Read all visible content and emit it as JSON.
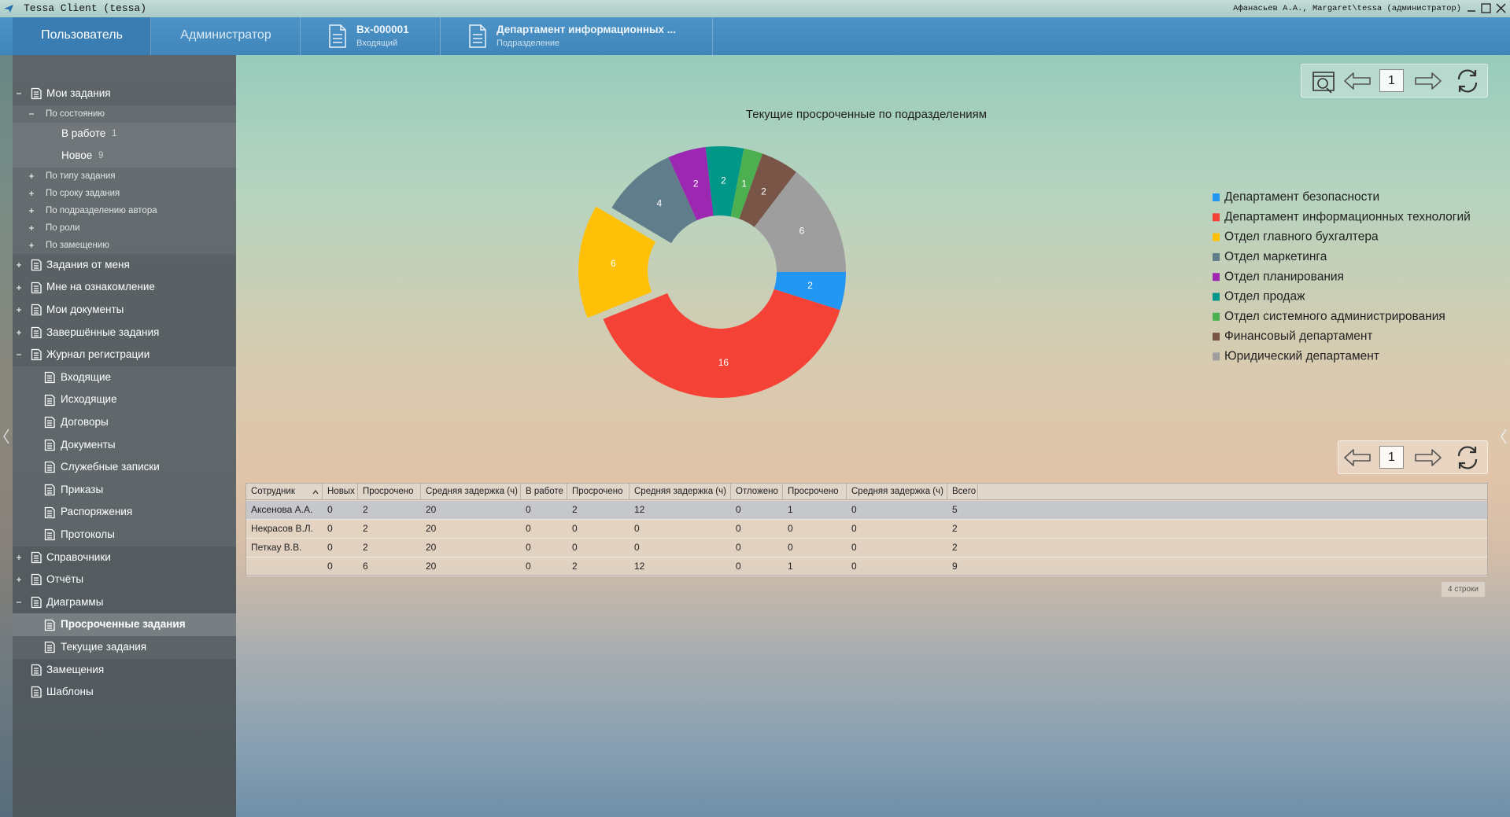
{
  "window": {
    "title": "Tessa Client (tessa)",
    "user": "Афанасьев А.А., Margaret\\tessa (администратор)"
  },
  "tabs": {
    "main": [
      "Пользователь",
      "Администратор"
    ],
    "documents": [
      {
        "title": "Вх-000001",
        "subtitle": "Входящий"
      },
      {
        "title": "Департамент информационных ...",
        "subtitle": "Подразделение"
      }
    ]
  },
  "sidebar": {
    "items": [
      {
        "label": "Мои задания",
        "level": 0,
        "expanded": true
      },
      {
        "label": "По состоянию",
        "level": 1,
        "expanded": true
      },
      {
        "label": "В работе",
        "level": 2,
        "count": 1
      },
      {
        "label": "Новое",
        "level": 2,
        "count": 9
      },
      {
        "label": "По типу задания",
        "level": 1,
        "expanded": false
      },
      {
        "label": "По сроку задания",
        "level": 1,
        "expanded": false
      },
      {
        "label": "По подразделению автора",
        "level": 1,
        "expanded": false
      },
      {
        "label": "По роли",
        "level": 1,
        "expanded": false
      },
      {
        "label": "По замещению",
        "level": 1,
        "expanded": false
      },
      {
        "label": "Задания от меня",
        "level": 0,
        "expanded": false
      },
      {
        "label": "Мне на ознакомление",
        "level": 0,
        "expanded": false
      },
      {
        "label": "Мои документы",
        "level": 0,
        "expanded": false
      },
      {
        "label": "Завершённые задания",
        "level": 0,
        "expanded": false
      },
      {
        "label": "Журнал регистрации",
        "level": 0,
        "expanded": true
      },
      {
        "label": "Входящие",
        "level": 1
      },
      {
        "label": "Исходящие",
        "level": 1
      },
      {
        "label": "Договоры",
        "level": 1
      },
      {
        "label": "Документы",
        "level": 1
      },
      {
        "label": "Служебные записки",
        "level": 1
      },
      {
        "label": "Приказы",
        "level": 1
      },
      {
        "label": "Распоряжения",
        "level": 1
      },
      {
        "label": "Протоколы",
        "level": 1
      },
      {
        "label": "Справочники",
        "level": 0,
        "expanded": false
      },
      {
        "label": "Отчёты",
        "level": 0,
        "expanded": false
      },
      {
        "label": "Диаграммы",
        "level": 0,
        "expanded": true
      },
      {
        "label": "Просроченные задания",
        "level": 1,
        "selected": true
      },
      {
        "label": "Текущие задания",
        "level": 1
      },
      {
        "label": "Замещения",
        "level": 0
      },
      {
        "label": "Шаблоны",
        "level": 0
      }
    ]
  },
  "chart_data": {
    "type": "pie",
    "donut": true,
    "title": "Текущие просроченные по подразделениям",
    "categories": [
      "Департамент безопасности",
      "Департамент информационных технологий",
      "Отдел главного бухгалтера",
      "Отдел маркетинга",
      "Отдел планирования",
      "Отдел продаж",
      "Отдел системного администрирования",
      "Финансовый департамент",
      "Юридический департамент"
    ],
    "values": [
      2,
      16,
      6,
      4,
      2,
      2,
      1,
      2,
      6
    ],
    "colors": [
      "#2196f3",
      "#f44336",
      "#ffc107",
      "#607d8b",
      "#9c27b0",
      "#009688",
      "#4caf50",
      "#795548",
      "#9e9e9e"
    ],
    "explode": [
      false,
      false,
      true,
      false,
      false,
      false,
      false,
      false,
      false
    ],
    "legend": "right"
  },
  "chart_pager": {
    "page": 1
  },
  "table_pager": {
    "page": 1
  },
  "table": {
    "columns": [
      "Сотрудник",
      "Новых",
      "Просрочено",
      "Средняя задержка (ч)",
      "В работе",
      "Просрочено",
      "Средняя задержка (ч)",
      "Отложено",
      "Просрочено",
      "Средняя задержка (ч)",
      "Всего"
    ],
    "rows": [
      [
        "Аксенова А.А.",
        0,
        2,
        20,
        0,
        2,
        12,
        0,
        1,
        0,
        5
      ],
      [
        "Некрасов В.Л.",
        0,
        2,
        20,
        0,
        0,
        0,
        0,
        0,
        0,
        2
      ],
      [
        "Петкау В.В.",
        0,
        2,
        20,
        0,
        0,
        0,
        0,
        0,
        0,
        2
      ],
      [
        null,
        0,
        6,
        20,
        0,
        2,
        12,
        0,
        1,
        0,
        9
      ]
    ],
    "row_count": "4 строки"
  }
}
